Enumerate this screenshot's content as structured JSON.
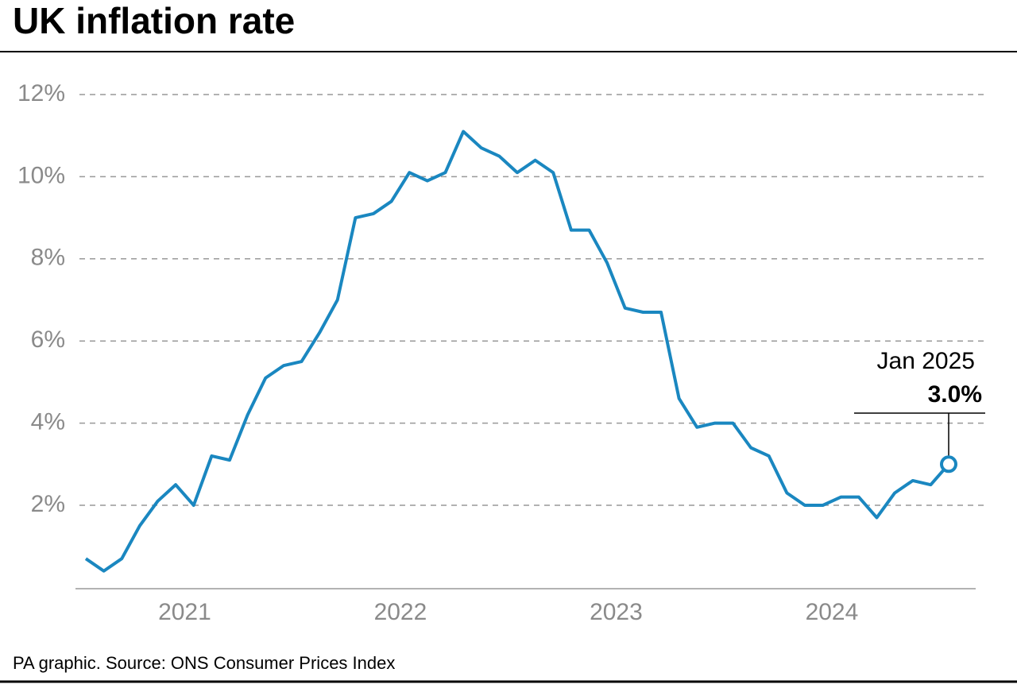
{
  "chart_data": {
    "type": "line",
    "title": "UK inflation rate",
    "source": "PA graphic. Source: ONS Consumer Prices Index",
    "categories": [
      null,
      null,
      null,
      null,
      null,
      null,
      null,
      null,
      null,
      null,
      null,
      null,
      null,
      null,
      null,
      null,
      null,
      null,
      null,
      null,
      null,
      null,
      null,
      null,
      null,
      null,
      null,
      null,
      null,
      null,
      null,
      null,
      null,
      null,
      null,
      null,
      null,
      null,
      null,
      null,
      null,
      null,
      null,
      null,
      null,
      null,
      null,
      null,
      null
    ],
    "series": [
      {
        "name": "CPI",
        "color": "#1a87c0",
        "values": [
          0.7,
          0.4,
          0.7,
          1.5,
          2.1,
          2.5,
          2.0,
          3.2,
          3.1,
          4.2,
          5.1,
          5.4,
          5.5,
          6.2,
          7.0,
          9.0,
          9.1,
          9.4,
          10.1,
          9.9,
          10.1,
          11.1,
          10.7,
          10.5,
          10.1,
          10.4,
          10.1,
          8.7,
          8.7,
          7.9,
          6.8,
          6.7,
          6.7,
          4.6,
          3.9,
          4.0,
          4.0,
          3.4,
          3.2,
          2.3,
          2.0,
          2.0,
          2.2,
          2.2,
          1.7,
          2.3,
          2.6,
          2.5,
          3.0
        ]
      }
    ],
    "xticks": [
      {
        "value": 5.5,
        "label": "2021"
      },
      {
        "value": 17.5,
        "label": "2022"
      },
      {
        "value": 29.5,
        "label": "2023"
      },
      {
        "value": 41.5,
        "label": "2024"
      }
    ],
    "ylim": [
      0,
      12
    ],
    "yticks": [
      {
        "value": 2,
        "label": "2%"
      },
      {
        "value": 4,
        "label": "4%"
      },
      {
        "value": 6,
        "label": "6%"
      },
      {
        "value": 8,
        "label": "8%"
      },
      {
        "value": 10,
        "label": "10%"
      },
      {
        "value": 12,
        "label": "12%"
      }
    ],
    "grid": true,
    "annotation": {
      "label": "Jan 2025",
      "value_label": "3.0%"
    }
  }
}
